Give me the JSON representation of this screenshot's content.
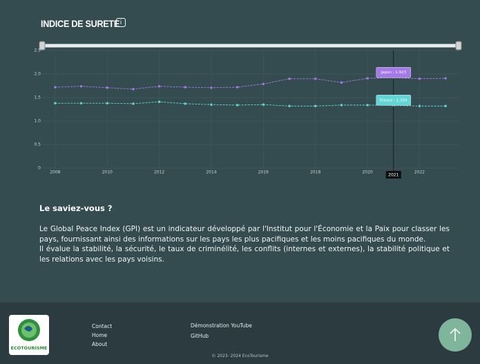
{
  "title": "INDICE DE SURETE",
  "chart_data": {
    "type": "line",
    "x": [
      2008,
      2009,
      2010,
      2011,
      2012,
      2013,
      2014,
      2015,
      2016,
      2017,
      2018,
      2019,
      2020,
      2021,
      2022,
      2023
    ],
    "series": [
      {
        "name": "Japon",
        "color": "#a57ae8",
        "values": [
          1.72,
          1.74,
          1.71,
          1.68,
          1.74,
          1.72,
          1.71,
          1.72,
          1.79,
          1.9,
          1.9,
          1.82,
          1.91,
          1.923,
          1.9,
          1.91
        ]
      },
      {
        "name": "France",
        "color": "#62d6d6",
        "values": [
          1.38,
          1.38,
          1.38,
          1.37,
          1.41,
          1.37,
          1.35,
          1.34,
          1.35,
          1.32,
          1.32,
          1.34,
          1.34,
          1.334,
          1.32,
          1.32
        ]
      }
    ],
    "xlim": [
      2007.5,
      2023.5
    ],
    "xticks": [
      2008,
      2010,
      2012,
      2014,
      2016,
      2018,
      2020,
      2022
    ],
    "ylim": [
      0,
      2.5
    ],
    "yticks": [
      0,
      0.5,
      {
        "value": 1,
        "label": "1.0"
      },
      1.5,
      {
        "value": 2,
        "label": "2.0"
      },
      2.5
    ],
    "grid": true,
    "hover": {
      "x_label": "2021",
      "labels": [
        "Japon : 1.923",
        "France : 1.334"
      ]
    }
  },
  "info": {
    "heading": "Le saviez-vous ?",
    "paragraphs": [
      "Le Global Peace Index (GPI) est un indicateur développé par l'Institut pour l'Économie et la Paix pour classer les pays, fournissant ainsi des informations sur les pays les plus pacifiques et les moins pacifiques du monde.",
      "Il évalue la stabilité, la sécurité, le taux de criminélité, les conflits (internes et externes), la stabilité politique et les relations avec les pays voisins."
    ]
  },
  "footer": {
    "logo": "ECOTOURISME",
    "links": [
      "Contact",
      "Home",
      "About"
    ],
    "links2": [
      "Démonstration YouTube",
      "GitHub"
    ],
    "copyright": "© 2023- 2024 EcoTourisme"
  }
}
